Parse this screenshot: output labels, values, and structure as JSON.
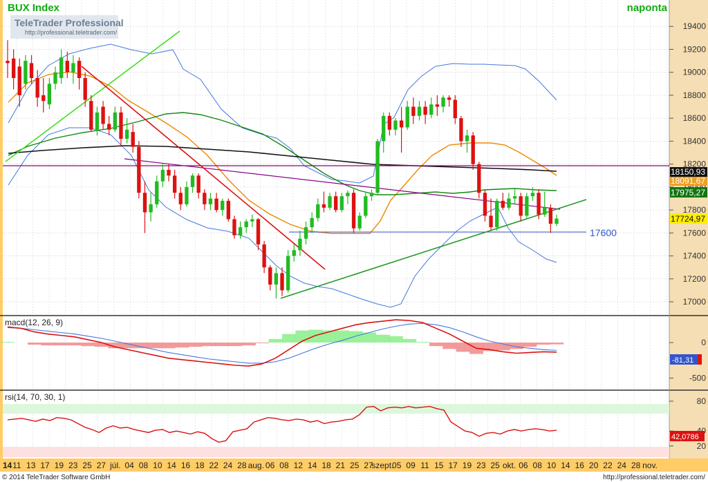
{
  "header": {
    "title": "BUX Index",
    "timeframe": "naponta",
    "brand": "TeleTrader Professional",
    "brand_url": "http://professional.teletrader.com/"
  },
  "footer": {
    "copyright": "© 2014 TeleTrader Software GmbH",
    "url": "http://professional.teletrader.com/"
  },
  "colors": {
    "up": "#22bb22",
    "down": "#dd1111",
    "bollinger": "#4477dd",
    "ma_short": "#ee8800",
    "ma_mid": "#118811",
    "ma_long": "#111111",
    "trend_purple": "#880088",
    "price_axis_bg": "#f5deb3",
    "date_axis_bg": "#ffcc66"
  },
  "chart_data": [
    {
      "type": "candlestick",
      "title": "BUX Index",
      "y_ticks": [
        "19400",
        "19200",
        "19000",
        "18800",
        "18600",
        "18400",
        "18200",
        "18000",
        "17800",
        "17600",
        "17400",
        "17200",
        "17000"
      ],
      "ylim": [
        16880,
        19630
      ],
      "x_tick_labels": [
        "14",
        "11",
        "13",
        "17",
        "19",
        "23",
        "25",
        "27",
        "júl.",
        "04",
        "08",
        "10",
        "14",
        "16",
        "18",
        "22",
        "24",
        "28",
        "aug.",
        "06",
        "08",
        "12",
        "14",
        "18",
        "21",
        "25",
        "27",
        "szept.",
        "05",
        "09",
        "11",
        "15",
        "17",
        "19",
        "23",
        "25",
        "okt.",
        "06",
        "08",
        "10",
        "14",
        "16",
        "20",
        "22",
        "24",
        "28",
        "nov."
      ],
      "price_labels": [
        {
          "text": "18150,93",
          "style": "black"
        },
        {
          "text": "18091,67",
          "style": "orange"
        },
        {
          "text": "17975,27",
          "style": "green"
        },
        {
          "text": "17724,97",
          "style": "yellow"
        }
      ],
      "horizontal_annotation": {
        "value": 17600,
        "text": "17600"
      },
      "candles": [
        {
          "o": 19100,
          "h": 19280,
          "l": 18950,
          "c": 19080
        },
        {
          "o": 19120,
          "h": 19200,
          "l": 18850,
          "c": 18950
        },
        {
          "o": 19050,
          "h": 19120,
          "l": 18700,
          "c": 18800
        },
        {
          "o": 18900,
          "h": 19150,
          "l": 18850,
          "c": 19100
        },
        {
          "o": 19080,
          "h": 19150,
          "l": 18900,
          "c": 18950
        },
        {
          "o": 18950,
          "h": 19020,
          "l": 18700,
          "c": 18780
        },
        {
          "o": 18800,
          "h": 18950,
          "l": 18650,
          "c": 18750
        },
        {
          "o": 18720,
          "h": 18950,
          "l": 18680,
          "c": 18900
        },
        {
          "o": 18900,
          "h": 19050,
          "l": 18850,
          "c": 19000
        },
        {
          "o": 18950,
          "h": 19200,
          "l": 18900,
          "c": 19130
        },
        {
          "o": 19100,
          "h": 19180,
          "l": 18950,
          "c": 19000
        },
        {
          "o": 19000,
          "h": 19150,
          "l": 18900,
          "c": 19080
        },
        {
          "o": 19100,
          "h": 19130,
          "l": 18850,
          "c": 18950
        },
        {
          "o": 18950,
          "h": 19000,
          "l": 18700,
          "c": 18760
        },
        {
          "o": 18750,
          "h": 18800,
          "l": 18480,
          "c": 18500
        },
        {
          "o": 18500,
          "h": 18700,
          "l": 18450,
          "c": 18650
        },
        {
          "o": 18700,
          "h": 18750,
          "l": 18500,
          "c": 18550
        },
        {
          "o": 18550,
          "h": 18620,
          "l": 18450,
          "c": 18500
        },
        {
          "o": 18500,
          "h": 18700,
          "l": 18480,
          "c": 18650
        },
        {
          "o": 18650,
          "h": 18700,
          "l": 18350,
          "c": 18420
        },
        {
          "o": 18420,
          "h": 18600,
          "l": 18380,
          "c": 18500
        },
        {
          "o": 18480,
          "h": 18550,
          "l": 18300,
          "c": 18350
        },
        {
          "o": 18350,
          "h": 18400,
          "l": 17900,
          "c": 17950
        },
        {
          "o": 17950,
          "h": 18050,
          "l": 17600,
          "c": 17780
        },
        {
          "o": 17780,
          "h": 17950,
          "l": 17700,
          "c": 17850
        },
        {
          "o": 17850,
          "h": 18100,
          "l": 17820,
          "c": 18050
        },
        {
          "o": 18050,
          "h": 18200,
          "l": 18000,
          "c": 18150
        },
        {
          "o": 18150,
          "h": 18200,
          "l": 18050,
          "c": 18100
        },
        {
          "o": 18100,
          "h": 18150,
          "l": 17900,
          "c": 17950
        },
        {
          "o": 17950,
          "h": 18000,
          "l": 17800,
          "c": 17850
        },
        {
          "o": 17850,
          "h": 18050,
          "l": 17830,
          "c": 18000
        },
        {
          "o": 18000,
          "h": 18120,
          "l": 17950,
          "c": 18100
        },
        {
          "o": 18100,
          "h": 18120,
          "l": 17900,
          "c": 17950
        },
        {
          "o": 17950,
          "h": 17980,
          "l": 17800,
          "c": 17850
        },
        {
          "o": 17850,
          "h": 17950,
          "l": 17800,
          "c": 17900
        },
        {
          "o": 17900,
          "h": 17950,
          "l": 17780,
          "c": 17800
        },
        {
          "o": 17800,
          "h": 17900,
          "l": 17750,
          "c": 17880
        },
        {
          "o": 17880,
          "h": 17900,
          "l": 17700,
          "c": 17720
        },
        {
          "o": 17720,
          "h": 17750,
          "l": 17550,
          "c": 17580
        },
        {
          "o": 17580,
          "h": 17700,
          "l": 17550,
          "c": 17650
        },
        {
          "o": 17650,
          "h": 17720,
          "l": 17600,
          "c": 17700
        },
        {
          "o": 17700,
          "h": 17760,
          "l": 17650,
          "c": 17720
        },
        {
          "o": 17720,
          "h": 17730,
          "l": 17450,
          "c": 17500
        },
        {
          "o": 17500,
          "h": 17530,
          "l": 17250,
          "c": 17300
        },
        {
          "o": 17300,
          "h": 17320,
          "l": 17100,
          "c": 17150
        },
        {
          "o": 17150,
          "h": 17300,
          "l": 17030,
          "c": 17250
        },
        {
          "o": 17250,
          "h": 17300,
          "l": 17050,
          "c": 17100
        },
        {
          "o": 17100,
          "h": 17450,
          "l": 17080,
          "c": 17400
        },
        {
          "o": 17400,
          "h": 17500,
          "l": 17350,
          "c": 17450
        },
        {
          "o": 17450,
          "h": 17620,
          "l": 17400,
          "c": 17550
        },
        {
          "o": 17550,
          "h": 17700,
          "l": 17500,
          "c": 17650
        },
        {
          "o": 17650,
          "h": 17780,
          "l": 17600,
          "c": 17730
        },
        {
          "o": 17730,
          "h": 17900,
          "l": 17700,
          "c": 17850
        },
        {
          "o": 17850,
          "h": 17960,
          "l": 17780,
          "c": 17820
        },
        {
          "o": 17820,
          "h": 17950,
          "l": 17800,
          "c": 17920
        },
        {
          "o": 17920,
          "h": 17960,
          "l": 17780,
          "c": 17800
        },
        {
          "o": 17800,
          "h": 17950,
          "l": 17780,
          "c": 17920
        },
        {
          "o": 17920,
          "h": 17970,
          "l": 17850,
          "c": 17950
        },
        {
          "o": 17950,
          "h": 17980,
          "l": 17600,
          "c": 17640
        },
        {
          "o": 17640,
          "h": 17780,
          "l": 17620,
          "c": 17750
        },
        {
          "o": 17750,
          "h": 17950,
          "l": 17730,
          "c": 17920
        },
        {
          "o": 17920,
          "h": 17980,
          "l": 17880,
          "c": 17950
        },
        {
          "o": 17950,
          "h": 18420,
          "l": 17930,
          "c": 18400
        },
        {
          "o": 18400,
          "h": 18650,
          "l": 18300,
          "c": 18620
        },
        {
          "o": 18620,
          "h": 18650,
          "l": 18450,
          "c": 18500
        },
        {
          "o": 18500,
          "h": 18600,
          "l": 18450,
          "c": 18580
        },
        {
          "o": 18580,
          "h": 18700,
          "l": 18300,
          "c": 18520
        },
        {
          "o": 18520,
          "h": 18750,
          "l": 18500,
          "c": 18700
        },
        {
          "o": 18700,
          "h": 18780,
          "l": 18550,
          "c": 18620
        },
        {
          "o": 18620,
          "h": 18750,
          "l": 18580,
          "c": 18700
        },
        {
          "o": 18700,
          "h": 18750,
          "l": 18550,
          "c": 18630
        },
        {
          "o": 18630,
          "h": 18780,
          "l": 18600,
          "c": 18720
        },
        {
          "o": 18720,
          "h": 18800,
          "l": 18620,
          "c": 18700
        },
        {
          "o": 18700,
          "h": 18800,
          "l": 18650,
          "c": 18780
        },
        {
          "o": 18780,
          "h": 18800,
          "l": 18700,
          "c": 18760
        },
        {
          "o": 18760,
          "h": 18800,
          "l": 18550,
          "c": 18600
        },
        {
          "o": 18600,
          "h": 18620,
          "l": 18350,
          "c": 18400
        },
        {
          "o": 18400,
          "h": 18500,
          "l": 18300,
          "c": 18450
        },
        {
          "o": 18450,
          "h": 18480,
          "l": 18150,
          "c": 18200
        },
        {
          "o": 18200,
          "h": 18220,
          "l": 17900,
          "c": 17950
        },
        {
          "o": 17950,
          "h": 17980,
          "l": 17700,
          "c": 17750
        },
        {
          "o": 17750,
          "h": 17900,
          "l": 17620,
          "c": 17650
        },
        {
          "o": 17650,
          "h": 17900,
          "l": 17620,
          "c": 17880
        },
        {
          "o": 17880,
          "h": 17950,
          "l": 17800,
          "c": 17820
        },
        {
          "o": 17820,
          "h": 17950,
          "l": 17800,
          "c": 17900
        },
        {
          "o": 17900,
          "h": 17980,
          "l": 17850,
          "c": 17920
        },
        {
          "o": 17920,
          "h": 17950,
          "l": 17700,
          "c": 17750
        },
        {
          "o": 17750,
          "h": 17950,
          "l": 17730,
          "c": 17920
        },
        {
          "o": 17920,
          "h": 18000,
          "l": 17880,
          "c": 17950
        },
        {
          "o": 17950,
          "h": 17980,
          "l": 17720,
          "c": 17760
        },
        {
          "o": 17760,
          "h": 17960,
          "l": 17740,
          "c": 17820
        },
        {
          "o": 17820,
          "h": 17850,
          "l": 17600,
          "c": 17680
        },
        {
          "o": 17680,
          "h": 17760,
          "l": 17660,
          "c": 17725
        }
      ]
    },
    {
      "type": "line",
      "title": "macd(12, 26, 9)",
      "y_ticks": [
        "0",
        "-500"
      ],
      "ylim": [
        -650,
        350
      ],
      "value_label": "-81,31",
      "series": [
        {
          "style": "macd",
          "values": [
            220,
            200,
            150,
            120,
            100,
            80,
            40,
            0,
            -60,
            -100,
            -140,
            -180,
            -220,
            -240,
            -260,
            -280,
            -300,
            -320,
            -330,
            -300,
            -220,
            -100,
            20,
            100,
            150,
            200,
            250,
            280,
            300,
            320,
            310,
            280,
            200,
            120,
            20,
            -80,
            -100,
            -130,
            -150,
            -140,
            -130,
            -135
          ]
        },
        {
          "style": "signal",
          "values": [
            210,
            200,
            180,
            160,
            140,
            120,
            90,
            60,
            20,
            -20,
            -60,
            -100,
            -140,
            -170,
            -200,
            -230,
            -250,
            -270,
            -290,
            -290,
            -270,
            -220,
            -150,
            -80,
            -20,
            30,
            90,
            140,
            190,
            230,
            260,
            270,
            250,
            210,
            150,
            80,
            20,
            -20,
            -60,
            -80,
            -100,
            -110
          ]
        },
        {
          "style": "histogram",
          "values": [
            10,
            0,
            -30,
            -40,
            -40,
            -40,
            -50,
            -60,
            -80,
            -80,
            -80,
            -80,
            -80,
            -70,
            -60,
            -50,
            -50,
            -50,
            -40,
            -10,
            50,
            120,
            170,
            180,
            170,
            170,
            160,
            140,
            110,
            90,
            50,
            10,
            -50,
            -90,
            -130,
            -160,
            -120,
            -110,
            -90,
            -60,
            -30,
            -25
          ]
        }
      ]
    },
    {
      "type": "line",
      "title": "rsi(14, 70, 30, 1)",
      "y_ticks": [
        "80",
        "40",
        "20"
      ],
      "ylim": [
        5,
        92
      ],
      "value_label": "42,0786",
      "series": [
        {
          "style": "rsi",
          "values": [
            55,
            56,
            57,
            55,
            53,
            56,
            54,
            58,
            57,
            55,
            50,
            45,
            42,
            38,
            44,
            47,
            44,
            45,
            42,
            40,
            38,
            41,
            42,
            38,
            40,
            38,
            36,
            39,
            37,
            30,
            25,
            27,
            39,
            41,
            43,
            52,
            55,
            58,
            57,
            55,
            54,
            56,
            55,
            52,
            54,
            50,
            52,
            53,
            55,
            56,
            62,
            72,
            73,
            67,
            71,
            72,
            71,
            73,
            71,
            72,
            73,
            70,
            68,
            52,
            46,
            40,
            38,
            33,
            37,
            38,
            36,
            40,
            42,
            40,
            42,
            43,
            42,
            40,
            41
          ]
        }
      ]
    }
  ]
}
